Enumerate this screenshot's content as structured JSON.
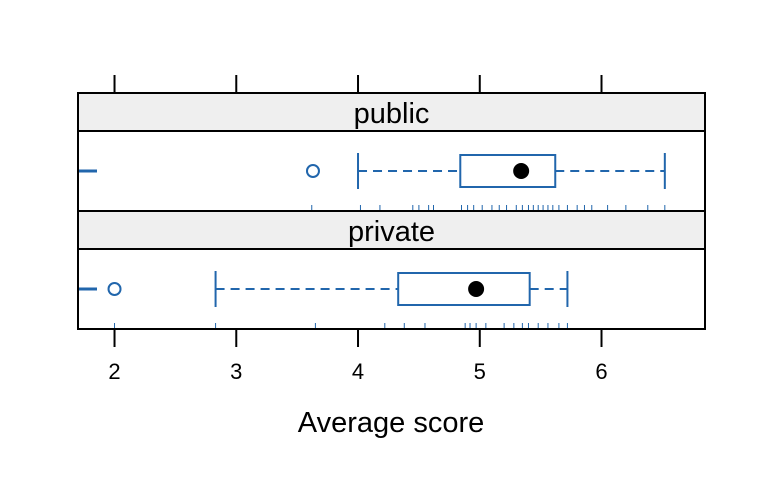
{
  "chart_data": {
    "type": "boxplot",
    "layout": "trellis-horizontal",
    "xlabel": "Average score",
    "xlim": [
      1.7,
      6.85
    ],
    "x_ticks": [
      2,
      3,
      4,
      5,
      6
    ],
    "x_tick_labels": [
      "2",
      "3",
      "4",
      "5",
      "6"
    ],
    "box_color": "#2166ac",
    "strip_fill": "#efefef",
    "panels": [
      {
        "name": "public",
        "min": 4.0,
        "q1": 4.84,
        "median": 5.34,
        "q3": 5.62,
        "max": 6.52,
        "outliers": [
          3.63
        ],
        "rug": [
          3.62,
          4.02,
          4.18,
          4.45,
          4.5,
          4.58,
          4.62,
          4.85,
          4.9,
          4.95,
          5.02,
          5.1,
          5.16,
          5.22,
          5.3,
          5.35,
          5.4,
          5.44,
          5.48,
          5.52,
          5.56,
          5.6,
          5.65,
          5.72,
          5.8,
          5.86,
          5.92,
          6.05,
          6.2,
          6.38,
          6.52
        ]
      },
      {
        "name": "private",
        "min": 2.83,
        "q1": 4.33,
        "median": 4.97,
        "q3": 5.41,
        "max": 5.72,
        "outliers": [
          2.0
        ],
        "rug": [
          2.0,
          2.83,
          3.65,
          4.22,
          4.38,
          4.55,
          4.88,
          4.92,
          4.97,
          5.05,
          5.2,
          5.28,
          5.35,
          5.4,
          5.48,
          5.56,
          5.65,
          5.72
        ]
      }
    ]
  }
}
